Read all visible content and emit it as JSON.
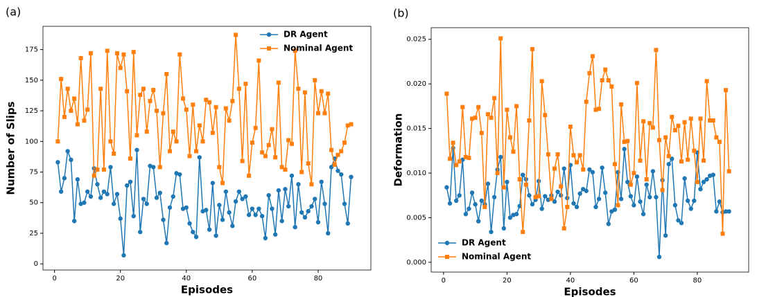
{
  "chart_data": [
    {
      "type": "line",
      "panel_label": "(a)",
      "x_label": "Episodes",
      "y_label": "Number of Slips",
      "x": [
        1,
        2,
        3,
        4,
        5,
        6,
        7,
        8,
        9,
        10,
        11,
        12,
        13,
        14,
        15,
        16,
        17,
        18,
        19,
        20,
        21,
        22,
        23,
        24,
        25,
        26,
        27,
        28,
        29,
        30,
        31,
        32,
        33,
        34,
        35,
        36,
        37,
        38,
        39,
        40,
        41,
        42,
        43,
        44,
        45,
        46,
        47,
        48,
        49,
        50,
        51,
        52,
        53,
        54,
        55,
        56,
        57,
        58,
        59,
        60,
        61,
        62,
        63,
        64,
        65,
        66,
        67,
        68,
        69,
        70,
        71,
        72,
        73,
        74,
        75,
        76,
        77,
        78,
        79,
        80,
        81,
        82,
        83,
        84,
        85,
        86,
        87,
        88,
        89,
        90
      ],
      "series": [
        {
          "name": "DR Agent",
          "color": "#1f77b4",
          "marker": "circle",
          "values": [
            83,
            59,
            70,
            92,
            85,
            35,
            69,
            49,
            50,
            59,
            55,
            78,
            65,
            54,
            59,
            57,
            79,
            49,
            57,
            37,
            7,
            64,
            67,
            39,
            93,
            26,
            53,
            49,
            80,
            79,
            54,
            58,
            36,
            17,
            46,
            55,
            74,
            73,
            45,
            46,
            33,
            26,
            22,
            87,
            43,
            44,
            28,
            66,
            23,
            48,
            36,
            59,
            42,
            31,
            51,
            59,
            53,
            55,
            40,
            45,
            40,
            45,
            39,
            21,
            56,
            45,
            24,
            60,
            35,
            61,
            47,
            72,
            30,
            65,
            42,
            38,
            43,
            47,
            53,
            34,
            67,
            49,
            25,
            79,
            86,
            76,
            73,
            49,
            33,
            71
          ]
        },
        {
          "name": "Nominal Agent",
          "color": "#ff7f0e",
          "marker": "square",
          "values": [
            100,
            151,
            120,
            143,
            125,
            135,
            114,
            168,
            117,
            126,
            172,
            72,
            77,
            143,
            77,
            174,
            100,
            90,
            172,
            160,
            171,
            141,
            86,
            173,
            105,
            138,
            143,
            108,
            133,
            142,
            125,
            79,
            123,
            155,
            92,
            108,
            100,
            171,
            135,
            126,
            88,
            130,
            92,
            113,
            100,
            134,
            132,
            107,
            128,
            79,
            66,
            127,
            117,
            133,
            187,
            143,
            84,
            147,
            72,
            99,
            111,
            166,
            91,
            88,
            97,
            110,
            87,
            148,
            79,
            77,
            101,
            98,
            174,
            143,
            75,
            140,
            82,
            65,
            150,
            123,
            141,
            123,
            139,
            93,
            81,
            89,
            92,
            99,
            113,
            114
          ]
        }
      ],
      "xlim": [
        -3.5,
        96
      ],
      "xticks": [
        0,
        20,
        40,
        60,
        80
      ],
      "ylim": [
        -5,
        194
      ],
      "yticks": [
        0,
        25,
        50,
        75,
        100,
        125,
        150,
        175
      ],
      "legend": "upper right"
    },
    {
      "type": "line",
      "panel_label": "(b)",
      "x_label": "Episodes",
      "y_label": "Deformation",
      "x": [
        1,
        2,
        3,
        4,
        5,
        6,
        7,
        8,
        9,
        10,
        11,
        12,
        13,
        14,
        15,
        16,
        17,
        18,
        19,
        20,
        21,
        22,
        23,
        24,
        25,
        26,
        27,
        28,
        29,
        30,
        31,
        32,
        33,
        34,
        35,
        36,
        37,
        38,
        39,
        40,
        41,
        42,
        43,
        44,
        45,
        46,
        47,
        48,
        49,
        50,
        51,
        52,
        53,
        54,
        55,
        56,
        57,
        58,
        59,
        60,
        61,
        62,
        63,
        64,
        65,
        66,
        67,
        68,
        69,
        70,
        71,
        72,
        73,
        74,
        75,
        76,
        77,
        78,
        79,
        80,
        81,
        82,
        83,
        84,
        85,
        86,
        87,
        88,
        89,
        90
      ],
      "series": [
        {
          "name": "DR Agent",
          "color": "#1f77b4",
          "marker": "circle",
          "values": [
            0.0084,
            0.0066,
            0.0128,
            0.0069,
            0.0075,
            0.0115,
            0.0054,
            0.006,
            0.0078,
            0.0065,
            0.0046,
            0.0069,
            0.0065,
            0.0088,
            0.0034,
            0.0073,
            0.0104,
            0.0118,
            0.0038,
            0.009,
            0.005,
            0.0053,
            0.0054,
            0.0063,
            0.0098,
            0.0093,
            0.0075,
            0.0065,
            0.007,
            0.0091,
            0.006,
            0.0074,
            0.007,
            0.0075,
            0.0068,
            0.0079,
            0.0075,
            0.0105,
            0.0072,
            0.0109,
            0.0066,
            0.0062,
            0.0077,
            0.0082,
            0.008,
            0.0104,
            0.0101,
            0.0062,
            0.0071,
            0.0106,
            0.0078,
            0.0043,
            0.0057,
            0.0059,
            0.0101,
            0.0071,
            0.0127,
            0.009,
            0.0074,
            0.0064,
            0.0096,
            0.0068,
            0.0054,
            0.0087,
            0.0073,
            0.0102,
            0.0073,
            0.0006,
            0.0092,
            0.003,
            0.011,
            0.0116,
            0.0064,
            0.0047,
            0.0044,
            0.0094,
            0.0069,
            0.006,
            0.0069,
            0.0123,
            0.0082,
            0.009,
            0.0093,
            0.0097,
            0.0098,
            0.0057,
            0.0068,
            0.0056,
            0.0057,
            0.0057
          ]
        },
        {
          "name": "Nominal Agent",
          "color": "#ff7f0e",
          "marker": "square",
          "values": [
            0.0189,
            0.0116,
            0.0134,
            0.0109,
            0.0113,
            0.0174,
            0.0118,
            0.0117,
            0.0161,
            0.0162,
            0.0174,
            0.0145,
            0.0062,
            0.0166,
            0.0162,
            0.0184,
            0.01,
            0.0251,
            0.0084,
            0.0171,
            0.014,
            0.0124,
            0.0175,
            0.0093,
            0.0034,
            0.0087,
            0.0159,
            0.0239,
            0.0073,
            0.0074,
            0.0203,
            0.0165,
            0.0121,
            0.0071,
            0.0105,
            0.0121,
            0.0085,
            0.0038,
            0.0062,
            0.0152,
            0.012,
            0.0112,
            0.012,
            0.0104,
            0.018,
            0.0212,
            0.0231,
            0.0171,
            0.0172,
            0.0204,
            0.0216,
            0.0204,
            0.0197,
            0.011,
            0.0064,
            0.0177,
            0.0135,
            0.0136,
            0.0087,
            0.01,
            0.0201,
            0.0114,
            0.0158,
            0.0093,
            0.0156,
            0.0151,
            0.0238,
            0.0137,
            0.0081,
            0.014,
            0.0119,
            0.0163,
            0.0148,
            0.0153,
            0.0113,
            0.0157,
            0.0115,
            0.0161,
            0.0125,
            0.009,
            0.0161,
            0.0114,
            0.0203,
            0.0159,
            0.0159,
            0.014,
            0.0135,
            0.0032,
            0.0193,
            0.0102
          ]
        }
      ],
      "xlim": [
        -3.9,
        96.2
      ],
      "xticks": [
        0,
        20,
        40,
        60,
        80
      ],
      "ylim": [
        -0.0011,
        0.0263
      ],
      "yticks": [
        {
          "value": 0,
          "label": "0.000"
        },
        {
          "value": 0.005,
          "label": "0.005"
        },
        {
          "value": 0.01,
          "label": "0.010"
        },
        {
          "value": 0.015,
          "label": "0.015"
        },
        {
          "value": 0.02,
          "label": "0.020"
        },
        {
          "value": 0.025,
          "label": "0.025"
        }
      ],
      "legend": "lower left"
    }
  ]
}
